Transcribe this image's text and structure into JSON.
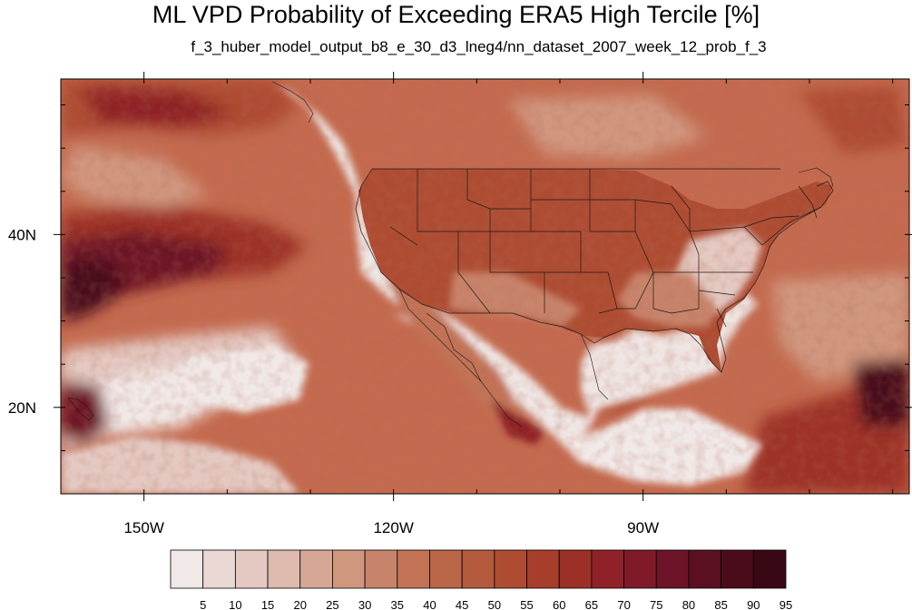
{
  "title": "ML VPD Probability of Exceeding ERA5 High Tercile [%]",
  "subtitle": "f_3_huber_model_output_b8_e_30_d3_lneg4/nn_dataset_2007_week_12_prob_f_3",
  "map": {
    "lon_range": [
      -160,
      -58
    ],
    "lat_range": [
      10,
      58
    ],
    "lon_ticks": [
      {
        "value": -150,
        "label": "150W"
      },
      {
        "value": -120,
        "label": "120W"
      },
      {
        "value": -90,
        "label": "90W"
      }
    ],
    "lat_ticks": [
      {
        "value": 40,
        "label": "40N"
      },
      {
        "value": 20,
        "label": "20N"
      }
    ],
    "ocean_color": "#c46a4e"
  },
  "colorbar": {
    "labels": [
      "5",
      "10",
      "15",
      "20",
      "25",
      "30",
      "35",
      "40",
      "45",
      "50",
      "55",
      "60",
      "65",
      "70",
      "75",
      "80",
      "85",
      "90",
      "95"
    ],
    "colors": [
      "#f1e9e8",
      "#ead8d5",
      "#e4c9c2",
      "#ddb9ae",
      "#d6a795",
      "#d0977f",
      "#c8846a",
      "#c27356",
      "#bb6549",
      "#b55b3d",
      "#ae4c32",
      "#a63e2b",
      "#9d3026",
      "#8f2128",
      "#801a2b",
      "#6d1428",
      "#5b1021",
      "#4a0c1b",
      "#3a0814"
    ]
  }
}
